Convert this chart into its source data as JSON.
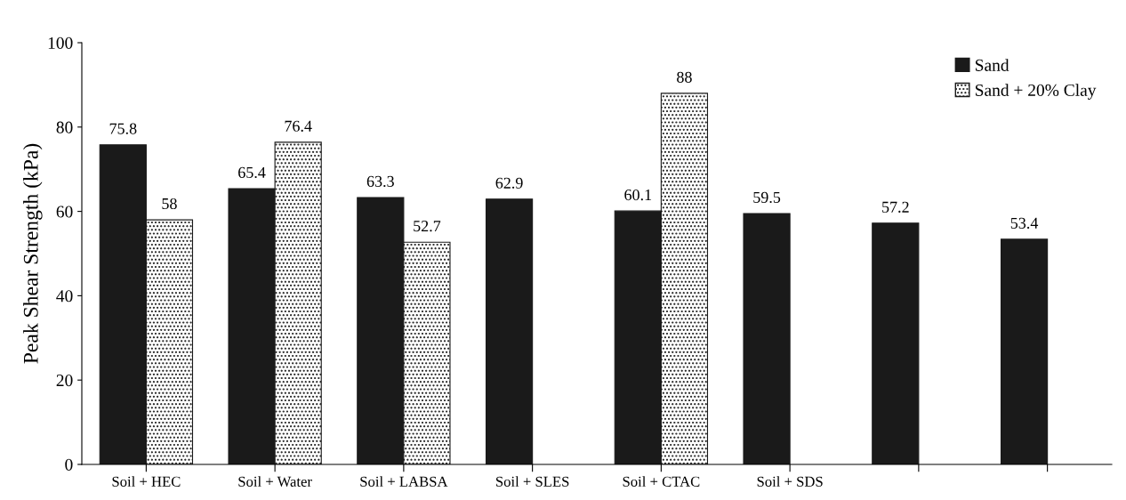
{
  "chart_data": {
    "type": "bar",
    "ylabel": "Peak Shear Strength (kPa)",
    "categories": [
      "Soil + HEC",
      "Soil + Water",
      "Soil + LABSA",
      "Soil + SLES",
      "Soil + CTAC",
      "Soil + SDS",
      null,
      null
    ],
    "series": [
      {
        "name": "Sand",
        "color": "#1a1a1a",
        "values": [
          75.8,
          65.4,
          63.3,
          62.9,
          60.1,
          59.5,
          57.2,
          53.4
        ]
      },
      {
        "name": "Sand + 20% Clay",
        "color": "#1a1a1a",
        "values": [
          58,
          76.4,
          52.7,
          null,
          88,
          null,
          null,
          null
        ]
      }
    ],
    "ylim": [
      0,
      100
    ],
    "yticks": [
      0,
      20,
      40,
      60,
      80,
      100
    ],
    "grid": false,
    "legend": "top right",
    "data_labels": true
  }
}
